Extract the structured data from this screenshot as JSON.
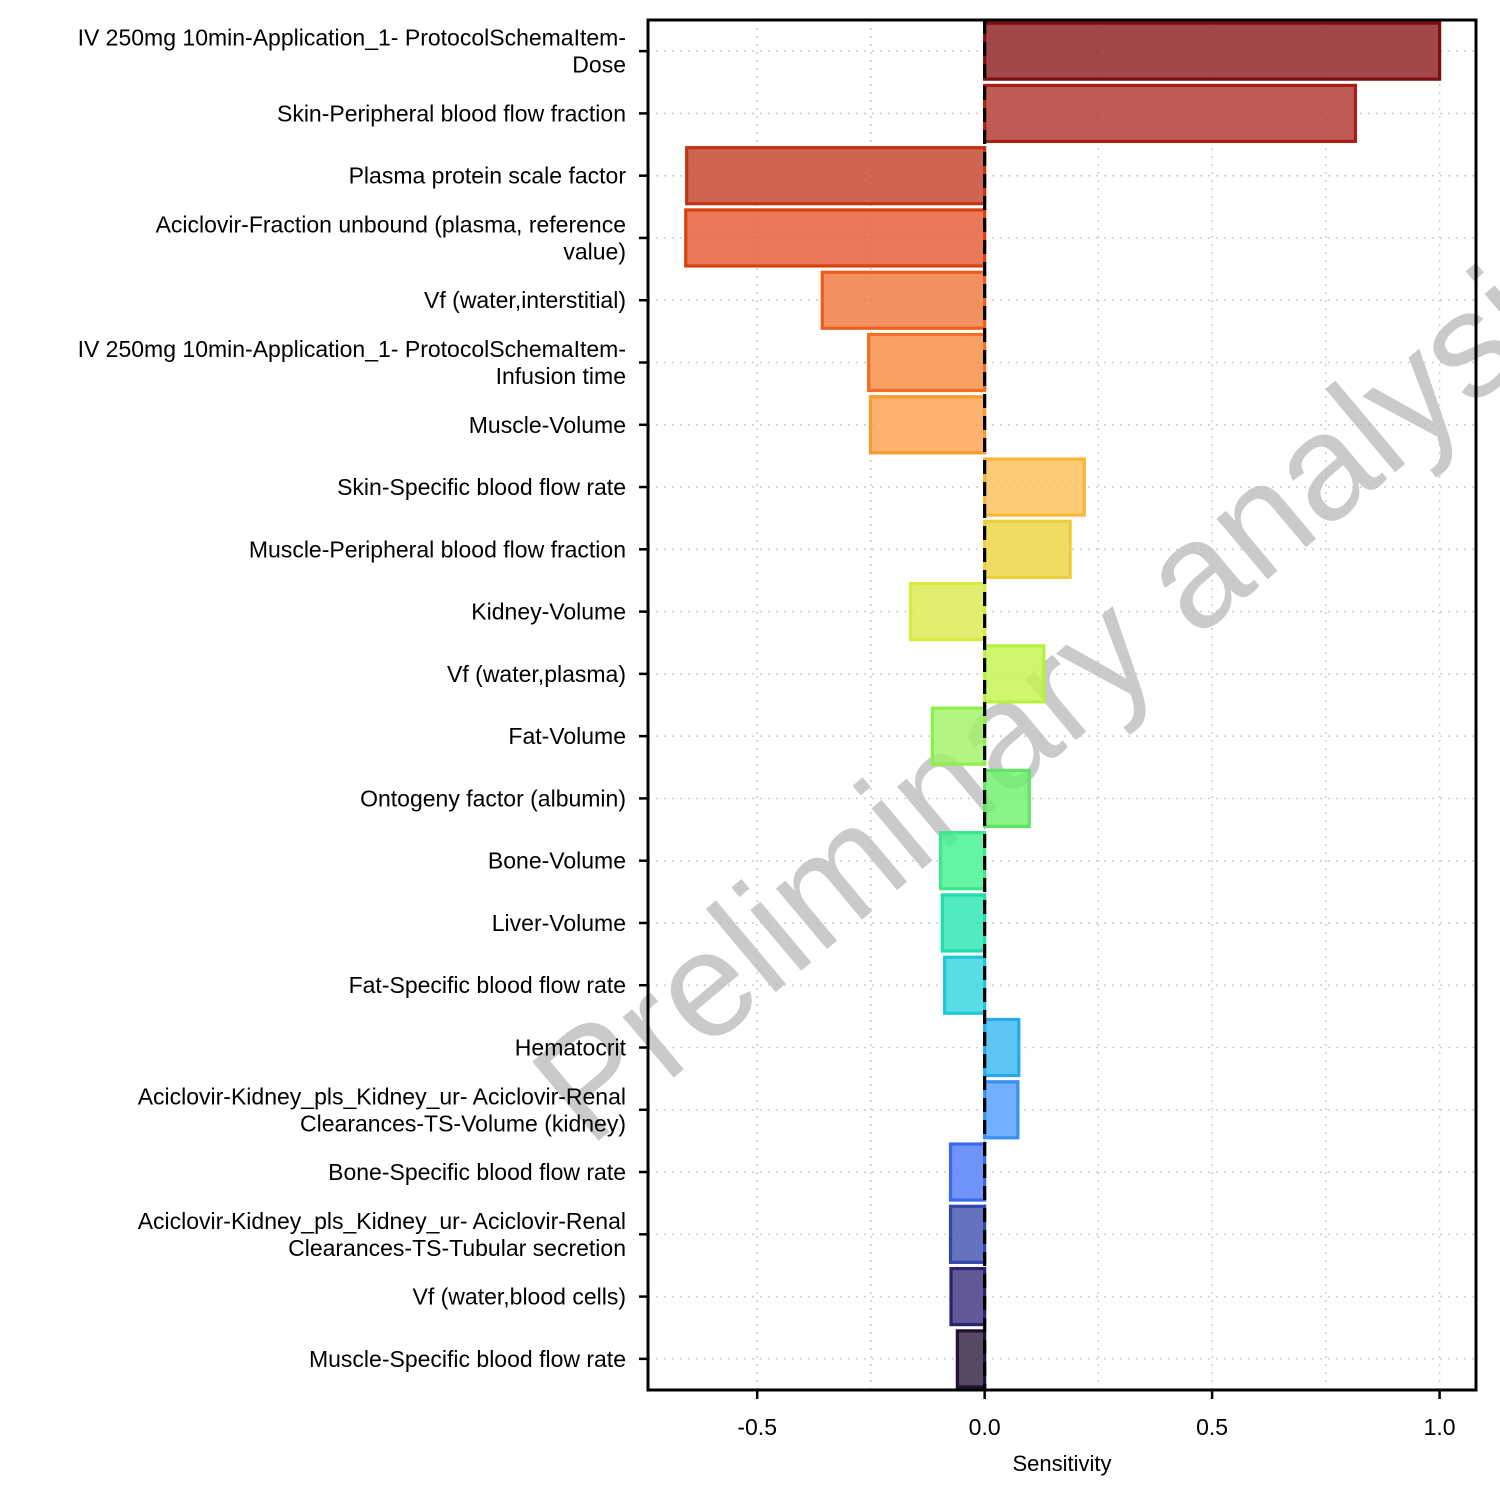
{
  "chart_data": {
    "type": "bar",
    "orientation": "horizontal",
    "xlabel": "Sensitivity",
    "ylabel": "",
    "xlim": [
      -0.74,
      1.08
    ],
    "x_ticks": [
      -0.5,
      0.0,
      0.5,
      1.0
    ],
    "x_tick_labels": [
      "-0.5",
      "0.0",
      "0.5",
      "1.0"
    ],
    "grid": "dotted",
    "legend": "none",
    "watermark": "Preliminary analysis",
    "categories": [
      [
        "IV 250mg 10min-Application_1- ProtocolSchemaItem-",
        "Dose"
      ],
      [
        "Skin-Peripheral blood flow fraction"
      ],
      [
        "Plasma protein scale factor"
      ],
      [
        "Aciclovir-Fraction unbound (plasma, reference",
        "value)"
      ],
      [
        "Vf (water,interstitial)"
      ],
      [
        "IV 250mg 10min-Application_1- ProtocolSchemaItem-",
        "Infusion time"
      ],
      [
        "Muscle-Volume"
      ],
      [
        "Skin-Specific blood flow rate"
      ],
      [
        "Muscle-Peripheral blood flow fraction"
      ],
      [
        "Kidney-Volume"
      ],
      [
        "Vf (water,plasma)"
      ],
      [
        "Fat-Volume"
      ],
      [
        "Ontogeny factor (albumin)"
      ],
      [
        "Bone-Volume"
      ],
      [
        "Liver-Volume"
      ],
      [
        "Fat-Specific blood flow rate"
      ],
      [
        "Hematocrit"
      ],
      [
        "Aciclovir-Kidney_pls_Kidney_ur- Aciclovir-Renal",
        "Clearances-TS-Volume (kidney)"
      ],
      [
        "Bone-Specific blood flow rate"
      ],
      [
        "Aciclovir-Kidney_pls_Kidney_ur- Aciclovir-Renal",
        "Clearances-TS-Tubular secretion"
      ],
      [
        "Vf (water,blood cells)"
      ],
      [
        "Muscle-Specific blood flow rate"
      ]
    ],
    "values": [
      1.0,
      0.815,
      -0.655,
      -0.657,
      -0.357,
      -0.255,
      -0.251,
      0.219,
      0.188,
      -0.163,
      0.13,
      -0.115,
      0.098,
      -0.097,
      -0.093,
      -0.088,
      0.075,
      0.073,
      -0.075,
      -0.075,
      -0.074,
      -0.06
    ],
    "fill_colors": [
      "#8b1a1d",
      "#b0312b",
      "#c33f26",
      "#e4572f",
      "#ef7637",
      "#f6893f",
      "#fba04c",
      "#fbbe52",
      "#ead53b",
      "#d9ea4b",
      "#c2f44a",
      "#9ff261",
      "#6bf068",
      "#3ef18c",
      "#26e6b2",
      "#2dd5dd",
      "#34b8ef",
      "#4e9cfe",
      "#4b79f7",
      "#3e4fb0",
      "#3a2f7e",
      "#2d1b3c"
    ],
    "stroke_colors": [
      "#7a0e11",
      "#a81f16",
      "#c23411",
      "#d8410d",
      "#eb5f1e",
      "#ef6e22",
      "#f79a30",
      "#f8b53a",
      "#ecce3a",
      "#d9ea3e",
      "#b8f03f",
      "#8cf04a",
      "#5ee563",
      "#3be88c",
      "#1fdcaa",
      "#1fc8d8",
      "#2aa8e8",
      "#3a8ff0",
      "#3b68ea",
      "#3345a8",
      "#2a2370",
      "#1f1232"
    ]
  }
}
